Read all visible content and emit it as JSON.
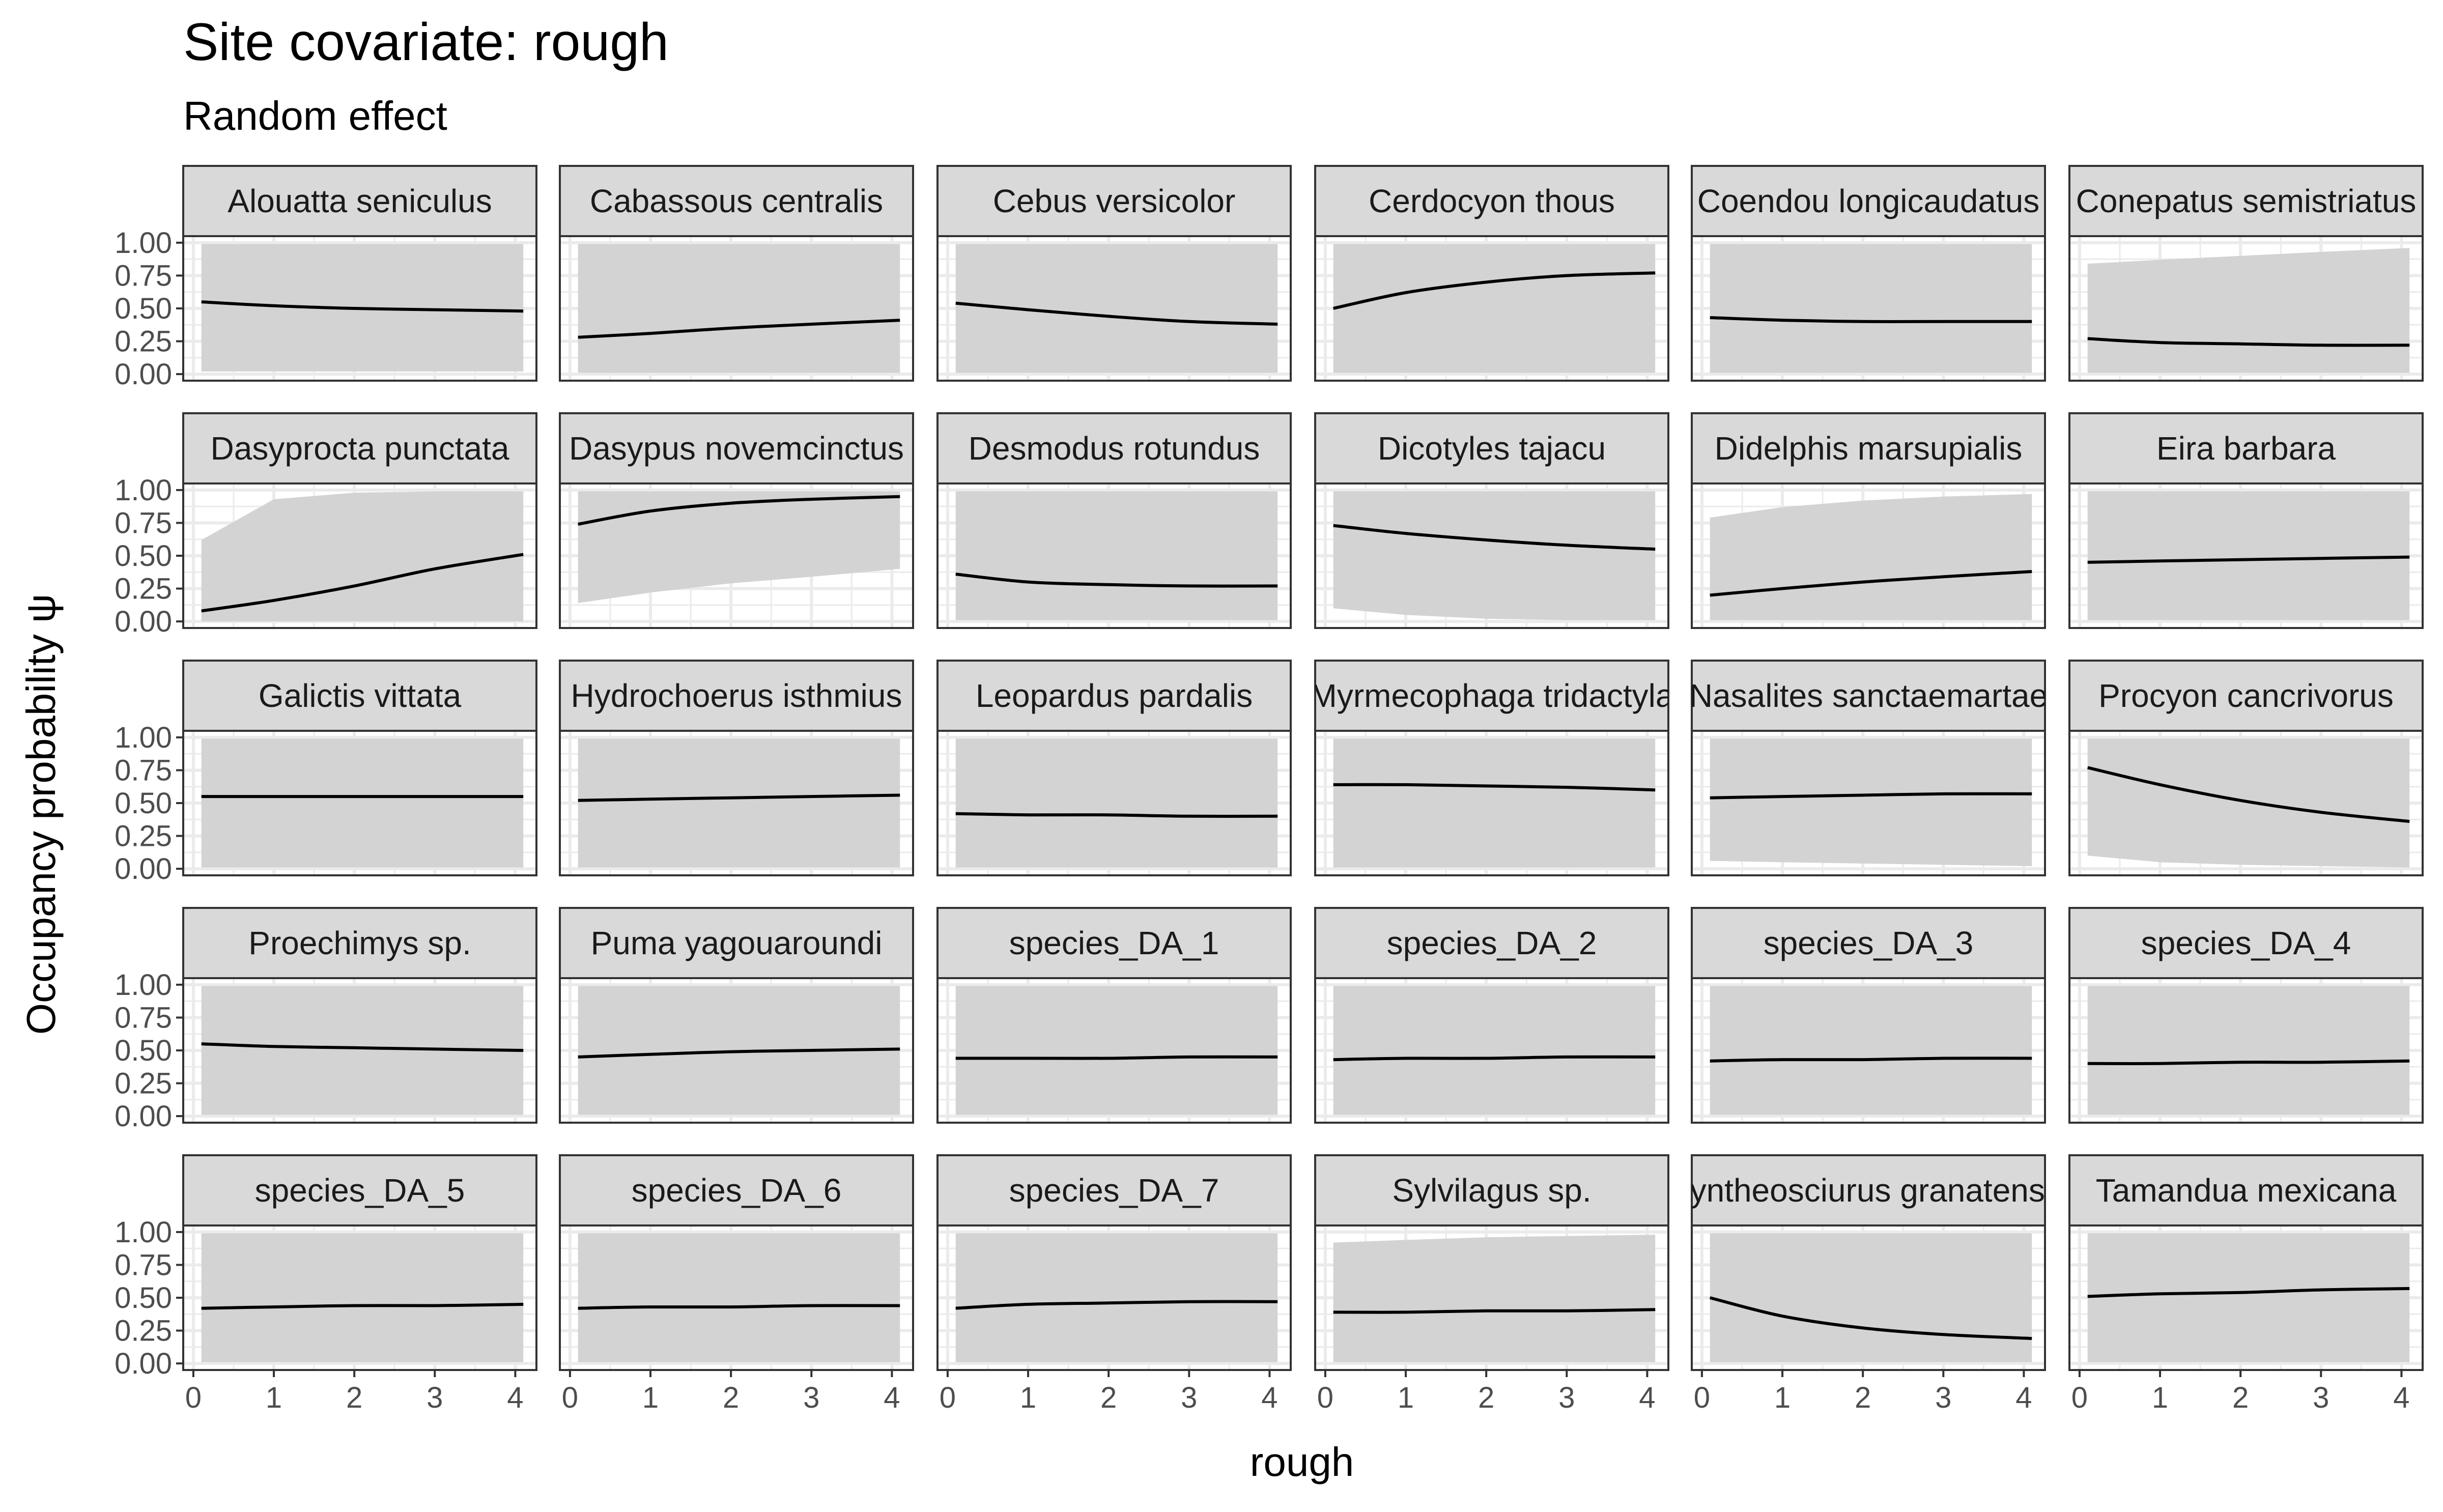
{
  "title": "Site covariate: rough",
  "subtitle": "Random effect",
  "xlabel": "rough",
  "ylabel": "Occupancy probability  ψ",
  "chart_data": {
    "type": "line",
    "title": "Site covariate: rough",
    "subtitle": "Random effect",
    "xlabel": "rough",
    "ylabel": "Occupancy probability  ψ",
    "xlim": [
      0,
      4.2
    ],
    "ylim": [
      0,
      1
    ],
    "x_ticks": [
      0,
      1,
      2,
      3,
      4
    ],
    "y_ticks": [
      0,
      0.25,
      0.5,
      0.75,
      1
    ],
    "x_tick_labels": [
      "0",
      "1",
      "2",
      "3",
      "4"
    ],
    "y_tick_labels": [
      "0.00",
      "0.25",
      "0.50",
      "0.75",
      "1.00"
    ],
    "grid": true,
    "legend": "none",
    "colors": {
      "line": "#000000",
      "ribbon": "#d3d3d3",
      "strip": "#d9d9d9",
      "grid": "#ebebeb",
      "border": "#333333"
    },
    "x": [
      0.1,
      1,
      2,
      3,
      4.1
    ],
    "panels": [
      {
        "name": "Alouatta seniculus",
        "mean": [
          0.55,
          0.52,
          0.5,
          0.49,
          0.48
        ],
        "lower": [
          0.02,
          0.02,
          0.02,
          0.02,
          0.02
        ],
        "upper": [
          0.99,
          0.99,
          0.99,
          0.99,
          0.99
        ]
      },
      {
        "name": "Cabassous centralis",
        "mean": [
          0.28,
          0.31,
          0.35,
          0.38,
          0.41
        ],
        "lower": [
          0.01,
          0.01,
          0.01,
          0.01,
          0.01
        ],
        "upper": [
          0.99,
          0.99,
          0.99,
          0.99,
          0.99
        ]
      },
      {
        "name": "Cebus versicolor",
        "mean": [
          0.54,
          0.49,
          0.44,
          0.4,
          0.38
        ],
        "lower": [
          0.01,
          0.01,
          0.01,
          0.01,
          0.01
        ],
        "upper": [
          0.99,
          0.99,
          0.99,
          0.99,
          0.99
        ]
      },
      {
        "name": "Cerdocyon thous",
        "mean": [
          0.5,
          0.62,
          0.7,
          0.75,
          0.77
        ],
        "lower": [
          0.01,
          0.01,
          0.01,
          0.01,
          0.01
        ],
        "upper": [
          0.99,
          0.99,
          0.99,
          0.99,
          0.99
        ]
      },
      {
        "name": "Coendou longicaudatus",
        "mean": [
          0.43,
          0.41,
          0.4,
          0.4,
          0.4
        ],
        "lower": [
          0.01,
          0.01,
          0.01,
          0.01,
          0.01
        ],
        "upper": [
          0.99,
          0.99,
          0.99,
          0.99,
          0.99
        ]
      },
      {
        "name": "Conepatus semistriatus",
        "mean": [
          0.27,
          0.24,
          0.23,
          0.22,
          0.22
        ],
        "lower": [
          0.01,
          0.01,
          0.01,
          0.01,
          0.01
        ],
        "upper": [
          0.84,
          0.87,
          0.9,
          0.93,
          0.96
        ]
      },
      {
        "name": "Dasyprocta punctata",
        "mean": [
          0.08,
          0.16,
          0.27,
          0.4,
          0.51
        ],
        "lower": [
          0.0,
          0.0,
          0.0,
          0.0,
          0.0
        ],
        "upper": [
          0.62,
          0.93,
          0.98,
          0.99,
          0.99
        ]
      },
      {
        "name": "Dasypus novemcinctus",
        "mean": [
          0.74,
          0.84,
          0.9,
          0.93,
          0.95
        ],
        "lower": [
          0.14,
          0.22,
          0.29,
          0.34,
          0.4
        ],
        "upper": [
          0.99,
          0.99,
          0.99,
          0.99,
          0.99
        ]
      },
      {
        "name": "Desmodus rotundus",
        "mean": [
          0.36,
          0.3,
          0.28,
          0.27,
          0.27
        ],
        "lower": [
          0.01,
          0.01,
          0.01,
          0.01,
          0.01
        ],
        "upper": [
          0.99,
          0.99,
          0.99,
          0.99,
          0.99
        ]
      },
      {
        "name": "Dicotyles tajacu",
        "mean": [
          0.73,
          0.67,
          0.62,
          0.58,
          0.55
        ],
        "lower": [
          0.1,
          0.05,
          0.02,
          0.01,
          0.01
        ],
        "upper": [
          0.99,
          0.99,
          0.99,
          0.99,
          0.99
        ]
      },
      {
        "name": "Didelphis marsupialis",
        "mean": [
          0.2,
          0.25,
          0.3,
          0.34,
          0.38
        ],
        "lower": [
          0.01,
          0.01,
          0.01,
          0.01,
          0.01
        ],
        "upper": [
          0.79,
          0.87,
          0.92,
          0.95,
          0.97
        ]
      },
      {
        "name": "Eira barbara",
        "mean": [
          0.45,
          0.46,
          0.47,
          0.48,
          0.49
        ],
        "lower": [
          0.01,
          0.01,
          0.01,
          0.01,
          0.01
        ],
        "upper": [
          0.99,
          0.99,
          0.99,
          0.99,
          0.99
        ]
      },
      {
        "name": "Galictis vittata",
        "mean": [
          0.55,
          0.55,
          0.55,
          0.55,
          0.55
        ],
        "lower": [
          0.01,
          0.01,
          0.01,
          0.01,
          0.01
        ],
        "upper": [
          0.99,
          0.99,
          0.99,
          0.99,
          0.99
        ]
      },
      {
        "name": "Hydrochoerus isthmius",
        "mean": [
          0.52,
          0.53,
          0.54,
          0.55,
          0.56
        ],
        "lower": [
          0.01,
          0.01,
          0.01,
          0.01,
          0.01
        ],
        "upper": [
          0.99,
          0.99,
          0.99,
          0.99,
          0.99
        ]
      },
      {
        "name": "Leopardus pardalis",
        "mean": [
          0.42,
          0.41,
          0.41,
          0.4,
          0.4
        ],
        "lower": [
          0.01,
          0.01,
          0.01,
          0.01,
          0.01
        ],
        "upper": [
          0.99,
          0.99,
          0.99,
          0.99,
          0.99
        ]
      },
      {
        "name": "Myrmecophaga tridactyla",
        "mean": [
          0.64,
          0.64,
          0.63,
          0.62,
          0.6
        ],
        "lower": [
          0.01,
          0.01,
          0.01,
          0.01,
          0.01
        ],
        "upper": [
          0.99,
          0.99,
          0.99,
          0.99,
          0.99
        ]
      },
      {
        "name": "Nasalites sanctaemartae",
        "mean": [
          0.54,
          0.55,
          0.56,
          0.57,
          0.57
        ],
        "lower": [
          0.06,
          0.05,
          0.04,
          0.03,
          0.02
        ],
        "upper": [
          0.99,
          0.99,
          0.99,
          0.99,
          0.99
        ]
      },
      {
        "name": "Procyon cancrivorus",
        "mean": [
          0.77,
          0.64,
          0.52,
          0.43,
          0.36
        ],
        "lower": [
          0.1,
          0.05,
          0.03,
          0.02,
          0.01
        ],
        "upper": [
          0.99,
          0.99,
          0.99,
          0.99,
          0.99
        ]
      },
      {
        "name": "Proechimys sp.",
        "mean": [
          0.55,
          0.53,
          0.52,
          0.51,
          0.5
        ],
        "lower": [
          0.01,
          0.01,
          0.01,
          0.01,
          0.01
        ],
        "upper": [
          0.99,
          0.99,
          0.99,
          0.99,
          0.99
        ]
      },
      {
        "name": "Puma yagouaroundi",
        "mean": [
          0.45,
          0.47,
          0.49,
          0.5,
          0.51
        ],
        "lower": [
          0.01,
          0.01,
          0.01,
          0.01,
          0.01
        ],
        "upper": [
          0.99,
          0.99,
          0.99,
          0.99,
          0.99
        ]
      },
      {
        "name": "species_DA_1",
        "mean": [
          0.44,
          0.44,
          0.44,
          0.45,
          0.45
        ],
        "lower": [
          0.01,
          0.01,
          0.01,
          0.01,
          0.01
        ],
        "upper": [
          0.99,
          0.99,
          0.99,
          0.99,
          0.99
        ]
      },
      {
        "name": "species_DA_2",
        "mean": [
          0.43,
          0.44,
          0.44,
          0.45,
          0.45
        ],
        "lower": [
          0.01,
          0.01,
          0.01,
          0.01,
          0.01
        ],
        "upper": [
          0.99,
          0.99,
          0.99,
          0.99,
          0.99
        ]
      },
      {
        "name": "species_DA_3",
        "mean": [
          0.42,
          0.43,
          0.43,
          0.44,
          0.44
        ],
        "lower": [
          0.01,
          0.01,
          0.01,
          0.01,
          0.01
        ],
        "upper": [
          0.99,
          0.99,
          0.99,
          0.99,
          0.99
        ]
      },
      {
        "name": "species_DA_4",
        "mean": [
          0.4,
          0.4,
          0.41,
          0.41,
          0.42
        ],
        "lower": [
          0.01,
          0.01,
          0.01,
          0.01,
          0.01
        ],
        "upper": [
          0.99,
          0.99,
          0.99,
          0.99,
          0.99
        ]
      },
      {
        "name": "species_DA_5",
        "mean": [
          0.42,
          0.43,
          0.44,
          0.44,
          0.45
        ],
        "lower": [
          0.01,
          0.01,
          0.01,
          0.01,
          0.01
        ],
        "upper": [
          0.99,
          0.99,
          0.99,
          0.99,
          0.99
        ]
      },
      {
        "name": "species_DA_6",
        "mean": [
          0.42,
          0.43,
          0.43,
          0.44,
          0.44
        ],
        "lower": [
          0.01,
          0.01,
          0.01,
          0.01,
          0.01
        ],
        "upper": [
          0.99,
          0.99,
          0.99,
          0.99,
          0.99
        ]
      },
      {
        "name": "species_DA_7",
        "mean": [
          0.42,
          0.45,
          0.46,
          0.47,
          0.47
        ],
        "lower": [
          0.01,
          0.01,
          0.01,
          0.01,
          0.01
        ],
        "upper": [
          0.99,
          0.99,
          0.99,
          0.99,
          0.99
        ]
      },
      {
        "name": "Sylvilagus sp.",
        "mean": [
          0.39,
          0.39,
          0.4,
          0.4,
          0.41
        ],
        "lower": [
          0.01,
          0.01,
          0.01,
          0.01,
          0.01
        ],
        "upper": [
          0.92,
          0.94,
          0.96,
          0.97,
          0.98
        ]
      },
      {
        "name": "Syntheosciurus granatensis",
        "mean": [
          0.5,
          0.36,
          0.27,
          0.22,
          0.19
        ],
        "lower": [
          0.01,
          0.01,
          0.01,
          0.01,
          0.01
        ],
        "upper": [
          0.99,
          0.99,
          0.99,
          0.99,
          0.99
        ]
      },
      {
        "name": "Tamandua mexicana",
        "mean": [
          0.51,
          0.53,
          0.54,
          0.56,
          0.57
        ],
        "lower": [
          0.01,
          0.01,
          0.01,
          0.01,
          0.01
        ],
        "upper": [
          0.99,
          0.99,
          0.99,
          0.99,
          0.99
        ]
      }
    ]
  }
}
